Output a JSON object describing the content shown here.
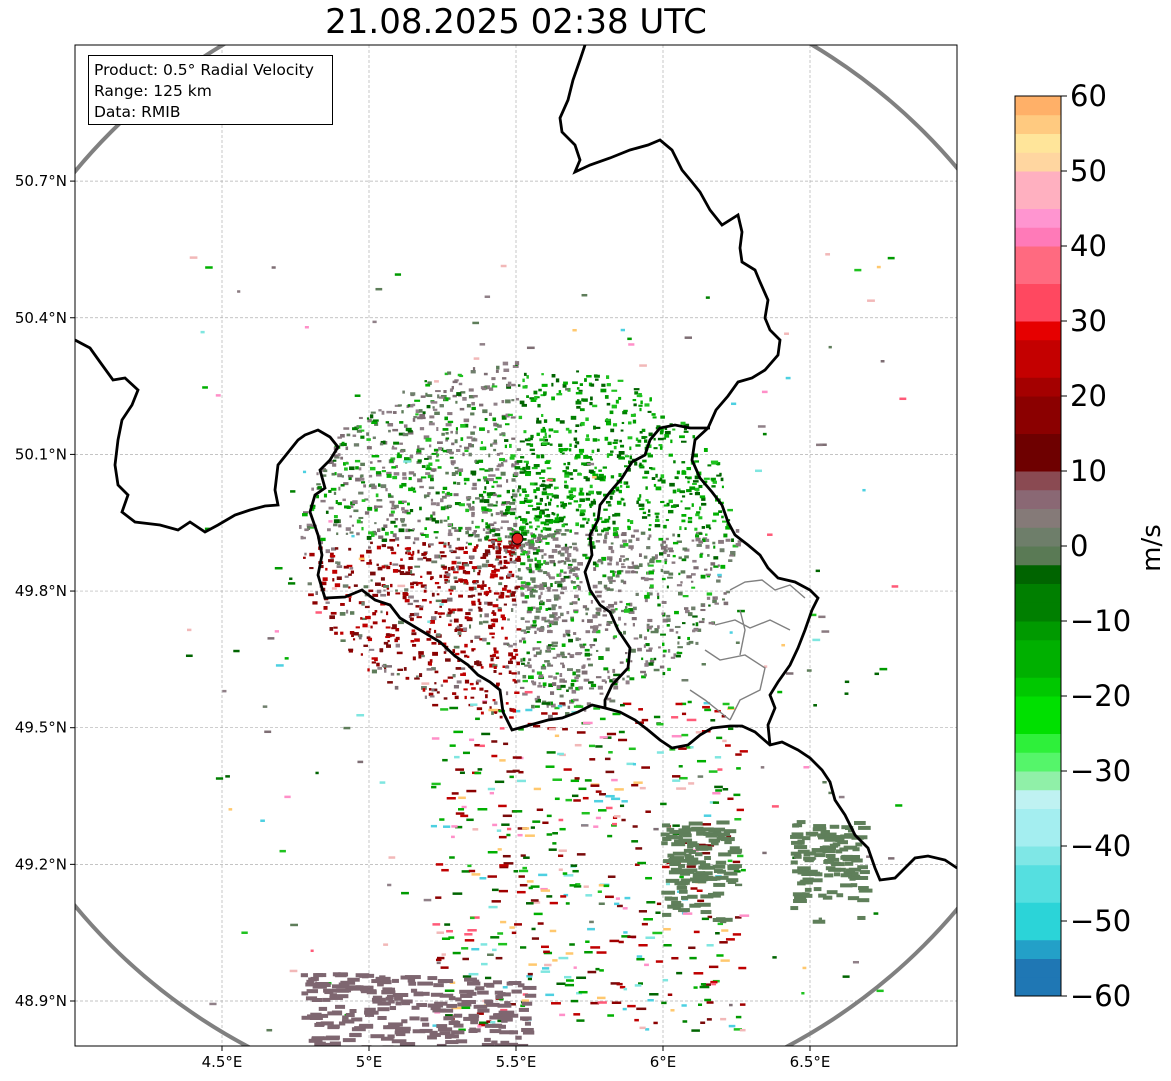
{
  "title": "21.08.2025 02:38 UTC",
  "info_box": {
    "product": "Product: 0.5° Radial Velocity",
    "range": "Range: 125 km",
    "data": "Data: RMIB"
  },
  "map": {
    "lon_range": [
      4.0,
      7.0
    ],
    "lat_range": [
      48.8,
      51.0
    ],
    "x_ticks": [
      "4.5°E",
      "5°E",
      "5.5°E",
      "6°E",
      "6.5°E"
    ],
    "x_tick_values": [
      4.5,
      5.0,
      5.5,
      6.0,
      6.5
    ],
    "y_ticks": [
      "50.7°N",
      "50.4°N",
      "50.1°N",
      "49.8°N",
      "49.5°N",
      "49.2°N",
      "48.9°N"
    ],
    "y_tick_values": [
      50.7,
      50.4,
      50.1,
      49.8,
      49.5,
      49.2,
      48.9
    ],
    "radar_site": {
      "lon": 5.505,
      "lat": 49.915
    },
    "range_ring_color": "#808080",
    "border_color": "#000000",
    "radar_marker_color": "#e02020"
  },
  "colorbar": {
    "label": "m/s",
    "min": -60,
    "max": 60,
    "ticks": [
      "60",
      "50",
      "40",
      "30",
      "20",
      "10",
      "0",
      "−10",
      "−20",
      "−30",
      "−40",
      "−50",
      "−60"
    ],
    "tick_values": [
      60,
      50,
      40,
      30,
      20,
      10,
      0,
      -10,
      -20,
      -30,
      -40,
      -50,
      -60
    ]
  }
}
